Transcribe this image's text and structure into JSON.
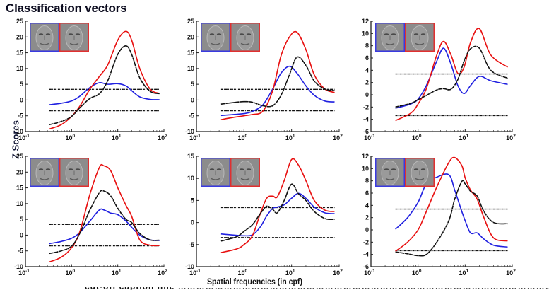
{
  "figure": {
    "title": "Classification vectors",
    "ylabel": "Z Scores",
    "xlabel": "Spatial frequencies (in cpf)",
    "caption_cut": "(caption text cut off at bottom edge)"
  },
  "colors": {
    "blue_series": "#1f1fe0",
    "red_series": "#e81010",
    "black_series": "#111111",
    "threshold": "#111111",
    "inset_blue_border": "#3a3ae0",
    "inset_red_border": "#e03030"
  },
  "chart_data": [
    {
      "type": "line",
      "panel": "row1-col1",
      "title": "",
      "xscale": "log",
      "xlim": [
        0.1,
        100
      ],
      "ylim": [
        -10,
        25
      ],
      "yticks": [
        -10,
        -5,
        0,
        5,
        10,
        15,
        20,
        25
      ],
      "xticks": [
        "10^-1",
        "10^0",
        "10^1",
        "10^2"
      ],
      "thresholds": [
        3.4,
        -3.4
      ],
      "inset": "face classification images (blue-bordered, red-bordered)",
      "x": [
        0.33,
        0.6,
        1.0,
        1.5,
        2.5,
        4,
        6,
        10,
        15,
        20,
        30,
        50,
        80
      ],
      "series": [
        {
          "name": "blue",
          "values": [
            -1.5,
            -1.0,
            -0.3,
            1.2,
            4.0,
            5.5,
            5.0,
            5.2,
            4.5,
            3.0,
            1.0,
            0.2,
            0.1
          ]
        },
        {
          "name": "red",
          "values": [
            -9.2,
            -7.8,
            -5.2,
            -2.0,
            3.5,
            7.5,
            11.0,
            19.0,
            21.8,
            19.0,
            10.0,
            3.5,
            2.1
          ]
        },
        {
          "name": "black",
          "values": [
            -7.8,
            -6.8,
            -5.2,
            -2.5,
            0.5,
            2.0,
            6.0,
            14.5,
            17.2,
            14.5,
            7.0,
            2.8,
            2.0
          ]
        }
      ]
    },
    {
      "type": "line",
      "panel": "row1-col2",
      "xscale": "log",
      "xlim": [
        0.1,
        100
      ],
      "ylim": [
        -10,
        25
      ],
      "yticks": [
        -10,
        -5,
        0,
        5,
        10,
        15,
        20,
        25
      ],
      "xticks": [
        "10^-1",
        "10^0",
        "10^1",
        "10^2"
      ],
      "thresholds": [
        3.4,
        -3.4
      ],
      "inset": "face classification images (blue-bordered, red-bordered)",
      "x": [
        0.33,
        0.6,
        1.0,
        1.5,
        2.5,
        4,
        6,
        9,
        13,
        20,
        30,
        50,
        80
      ],
      "series": [
        {
          "name": "blue",
          "values": [
            -4.9,
            -4.6,
            -4.3,
            -3.6,
            -1.5,
            3.5,
            8.5,
            10.7,
            8.5,
            4.5,
            1.5,
            -0.3,
            -0.6
          ]
        },
        {
          "name": "red",
          "values": [
            -6.2,
            -5.5,
            -5.0,
            -4.6,
            -3.5,
            3.0,
            14.0,
            20.0,
            21.5,
            16.0,
            8.0,
            3.5,
            2.4
          ]
        },
        {
          "name": "black",
          "values": [
            -1.3,
            -0.8,
            -0.5,
            -0.7,
            -1.8,
            -1.8,
            1.5,
            8.0,
            13.6,
            11.0,
            6.0,
            3.5,
            3.0
          ]
        }
      ]
    },
    {
      "type": "line",
      "panel": "row1-col3",
      "xscale": "log",
      "xlim": [
        0.1,
        100
      ],
      "ylim": [
        -6,
        12
      ],
      "yticks": [
        -6,
        -4,
        -2,
        0,
        2,
        4,
        6,
        8,
        10,
        12
      ],
      "xticks": [
        "10^-1",
        "10^0",
        "10^1",
        "10^2"
      ],
      "thresholds": [
        3.4,
        -3.4
      ],
      "inset": "face classification images (blue-bordered, red-bordered)",
      "x": [
        0.33,
        0.7,
        1.0,
        1.5,
        2.5,
        3.5,
        5,
        7,
        9.5,
        13,
        20,
        35,
        80
      ],
      "series": [
        {
          "name": "blue",
          "values": [
            -2.2,
            -1.5,
            -0.7,
            1.5,
            5.5,
            7.6,
            5.0,
            1.5,
            0.2,
            1.5,
            3.0,
            2.3,
            1.7
          ]
        },
        {
          "name": "red",
          "values": [
            -4.2,
            -3.0,
            -1.5,
            1.0,
            6.5,
            8.7,
            6.5,
            3.5,
            4.5,
            8.5,
            10.8,
            6.5,
            4.5
          ]
        },
        {
          "name": "black",
          "values": [
            -2.0,
            -1.4,
            -0.8,
            -0.1,
            0.8,
            1.0,
            0.9,
            2.5,
            5.5,
            7.5,
            7.6,
            4.0,
            2.7
          ]
        }
      ]
    },
    {
      "type": "line",
      "panel": "row2-col1",
      "xscale": "log",
      "xlim": [
        0.1,
        100
      ],
      "ylim": [
        -10,
        25
      ],
      "yticks": [
        -10,
        -5,
        0,
        5,
        10,
        15,
        20,
        25
      ],
      "xticks": [
        "10^-1",
        "10^0",
        "10^1",
        "10^2"
      ],
      "thresholds": [
        3.4,
        -3.4
      ],
      "inset": "face classification images (blue-bordered, red-bordered)",
      "x": [
        0.33,
        0.6,
        1.0,
        1.5,
        2.5,
        4,
        5,
        7,
        10,
        15,
        20,
        30,
        50,
        80
      ],
      "series": [
        {
          "name": "blue",
          "values": [
            -2.7,
            -2.0,
            -1.0,
            0.8,
            4.5,
            8.0,
            8.0,
            7.0,
            6.5,
            4.5,
            2.5,
            0.0,
            -1.5,
            -1.7
          ]
        },
        {
          "name": "red",
          "values": [
            -8.5,
            -7.0,
            -4.0,
            1.0,
            13.0,
            21.5,
            22.0,
            20.5,
            15.0,
            9.5,
            6.0,
            -1.5,
            -3.2,
            -3.3
          ]
        },
        {
          "name": "black",
          "values": [
            -5.8,
            -5.0,
            -3.5,
            0.5,
            8.0,
            13.5,
            14.0,
            12.5,
            8.5,
            5.0,
            4.0,
            0.5,
            -1.5,
            -1.6
          ]
        }
      ]
    },
    {
      "type": "line",
      "panel": "row2-col2",
      "xscale": "log",
      "xlim": [
        0.1,
        100
      ],
      "ylim": [
        -10,
        15
      ],
      "yticks": [
        -10,
        -5,
        0,
        5,
        10,
        15
      ],
      "xticks": [
        "10^-1",
        "10^0",
        "10^1",
        "10^2"
      ],
      "thresholds": [
        3.4,
        -3.4
      ],
      "inset": "face classification images (blue-bordered, red-bordered)",
      "x": [
        0.33,
        0.7,
        1.0,
        1.5,
        2.2,
        3,
        4,
        5,
        7,
        10,
        14,
        20,
        30,
        50,
        80
      ],
      "series": [
        {
          "name": "blue",
          "values": [
            -2.6,
            -2.9,
            -3.0,
            -2.8,
            -1.0,
            1.5,
            3.2,
            3.5,
            4.0,
            5.5,
            6.6,
            5.5,
            3.5,
            2.2,
            2.0
          ]
        },
        {
          "name": "red",
          "values": [
            -6.8,
            -6.0,
            -5.0,
            -3.0,
            2.0,
            5.5,
            6.0,
            5.8,
            9.5,
            14.3,
            13.0,
            9.5,
            5.0,
            2.8,
            2.5
          ]
        },
        {
          "name": "black",
          "values": [
            -4.2,
            -3.2,
            -2.0,
            -0.5,
            2.0,
            3.7,
            3.0,
            2.2,
            5.0,
            8.7,
            6.5,
            5.0,
            2.5,
            0.9,
            0.7
          ]
        }
      ]
    },
    {
      "type": "line",
      "panel": "row2-col3",
      "xscale": "log",
      "xlim": [
        0.1,
        100
      ],
      "ylim": [
        -6,
        12
      ],
      "yticks": [
        -6,
        -4,
        -2,
        0,
        2,
        4,
        6,
        8,
        10,
        12
      ],
      "xticks": [
        "10^-1",
        "10^0",
        "10^1",
        "10^2"
      ],
      "thresholds": [
        3.4,
        -3.4
      ],
      "inset": "face classification images (blue-bordered, red-bordered)",
      "x": [
        0.33,
        0.6,
        1.0,
        1.5,
        2.5,
        4.5,
        6,
        8.5,
        10,
        13,
        18,
        25,
        40,
        80
      ],
      "series": [
        {
          "name": "blue",
          "values": [
            0.1,
            2.0,
            4.5,
            7.5,
            8.6,
            9.0,
            6.5,
            3.0,
            1.5,
            -0.5,
            -0.5,
            -1.5,
            -2.5,
            -2.8
          ]
        },
        {
          "name": "red",
          "values": [
            -3.5,
            -2.0,
            0.0,
            3.0,
            7.0,
            11.0,
            11.8,
            10.5,
            8.5,
            6.5,
            5.0,
            2.0,
            -1.3,
            -1.8
          ]
        },
        {
          "name": "black",
          "values": [
            -3.6,
            -3.9,
            -4.2,
            -4.0,
            -2.0,
            1.5,
            5.0,
            7.9,
            7.5,
            6.3,
            5.5,
            3.0,
            1.2,
            1.0
          ]
        }
      ]
    }
  ]
}
